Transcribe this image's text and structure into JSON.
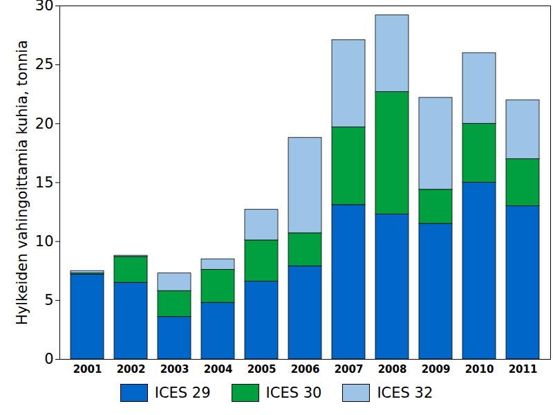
{
  "chart_data": {
    "type": "bar",
    "stacked": true,
    "y_label": "Hylkeiden vahingoittamia kuhia, tonnia",
    "categories": [
      "2001",
      "2002",
      "2003",
      "2004",
      "2005",
      "2006",
      "2007",
      "2008",
      "2009",
      "2010",
      "2011"
    ],
    "series": [
      {
        "name": "ICES 29",
        "color": "#0066c8",
        "values": [
          7.2,
          6.5,
          3.6,
          4.8,
          6.6,
          7.9,
          13.1,
          12.3,
          11.5,
          15.0,
          13.0
        ]
      },
      {
        "name": "ICES 30",
        "color": "#00a040",
        "values": [
          0.1,
          2.2,
          2.2,
          2.8,
          3.5,
          2.8,
          6.6,
          10.4,
          2.9,
          5.0,
          4.0
        ]
      },
      {
        "name": "ICES 32",
        "color": "#9dc3e6",
        "values": [
          0.2,
          0.1,
          1.5,
          0.9,
          2.6,
          8.1,
          7.4,
          6.5,
          7.8,
          6.0,
          5.0
        ]
      }
    ],
    "ylim": [
      0,
      30
    ],
    "yticks": [
      0,
      5,
      10,
      15,
      20,
      25,
      30
    ],
    "grid": false,
    "legend": "bottom"
  }
}
